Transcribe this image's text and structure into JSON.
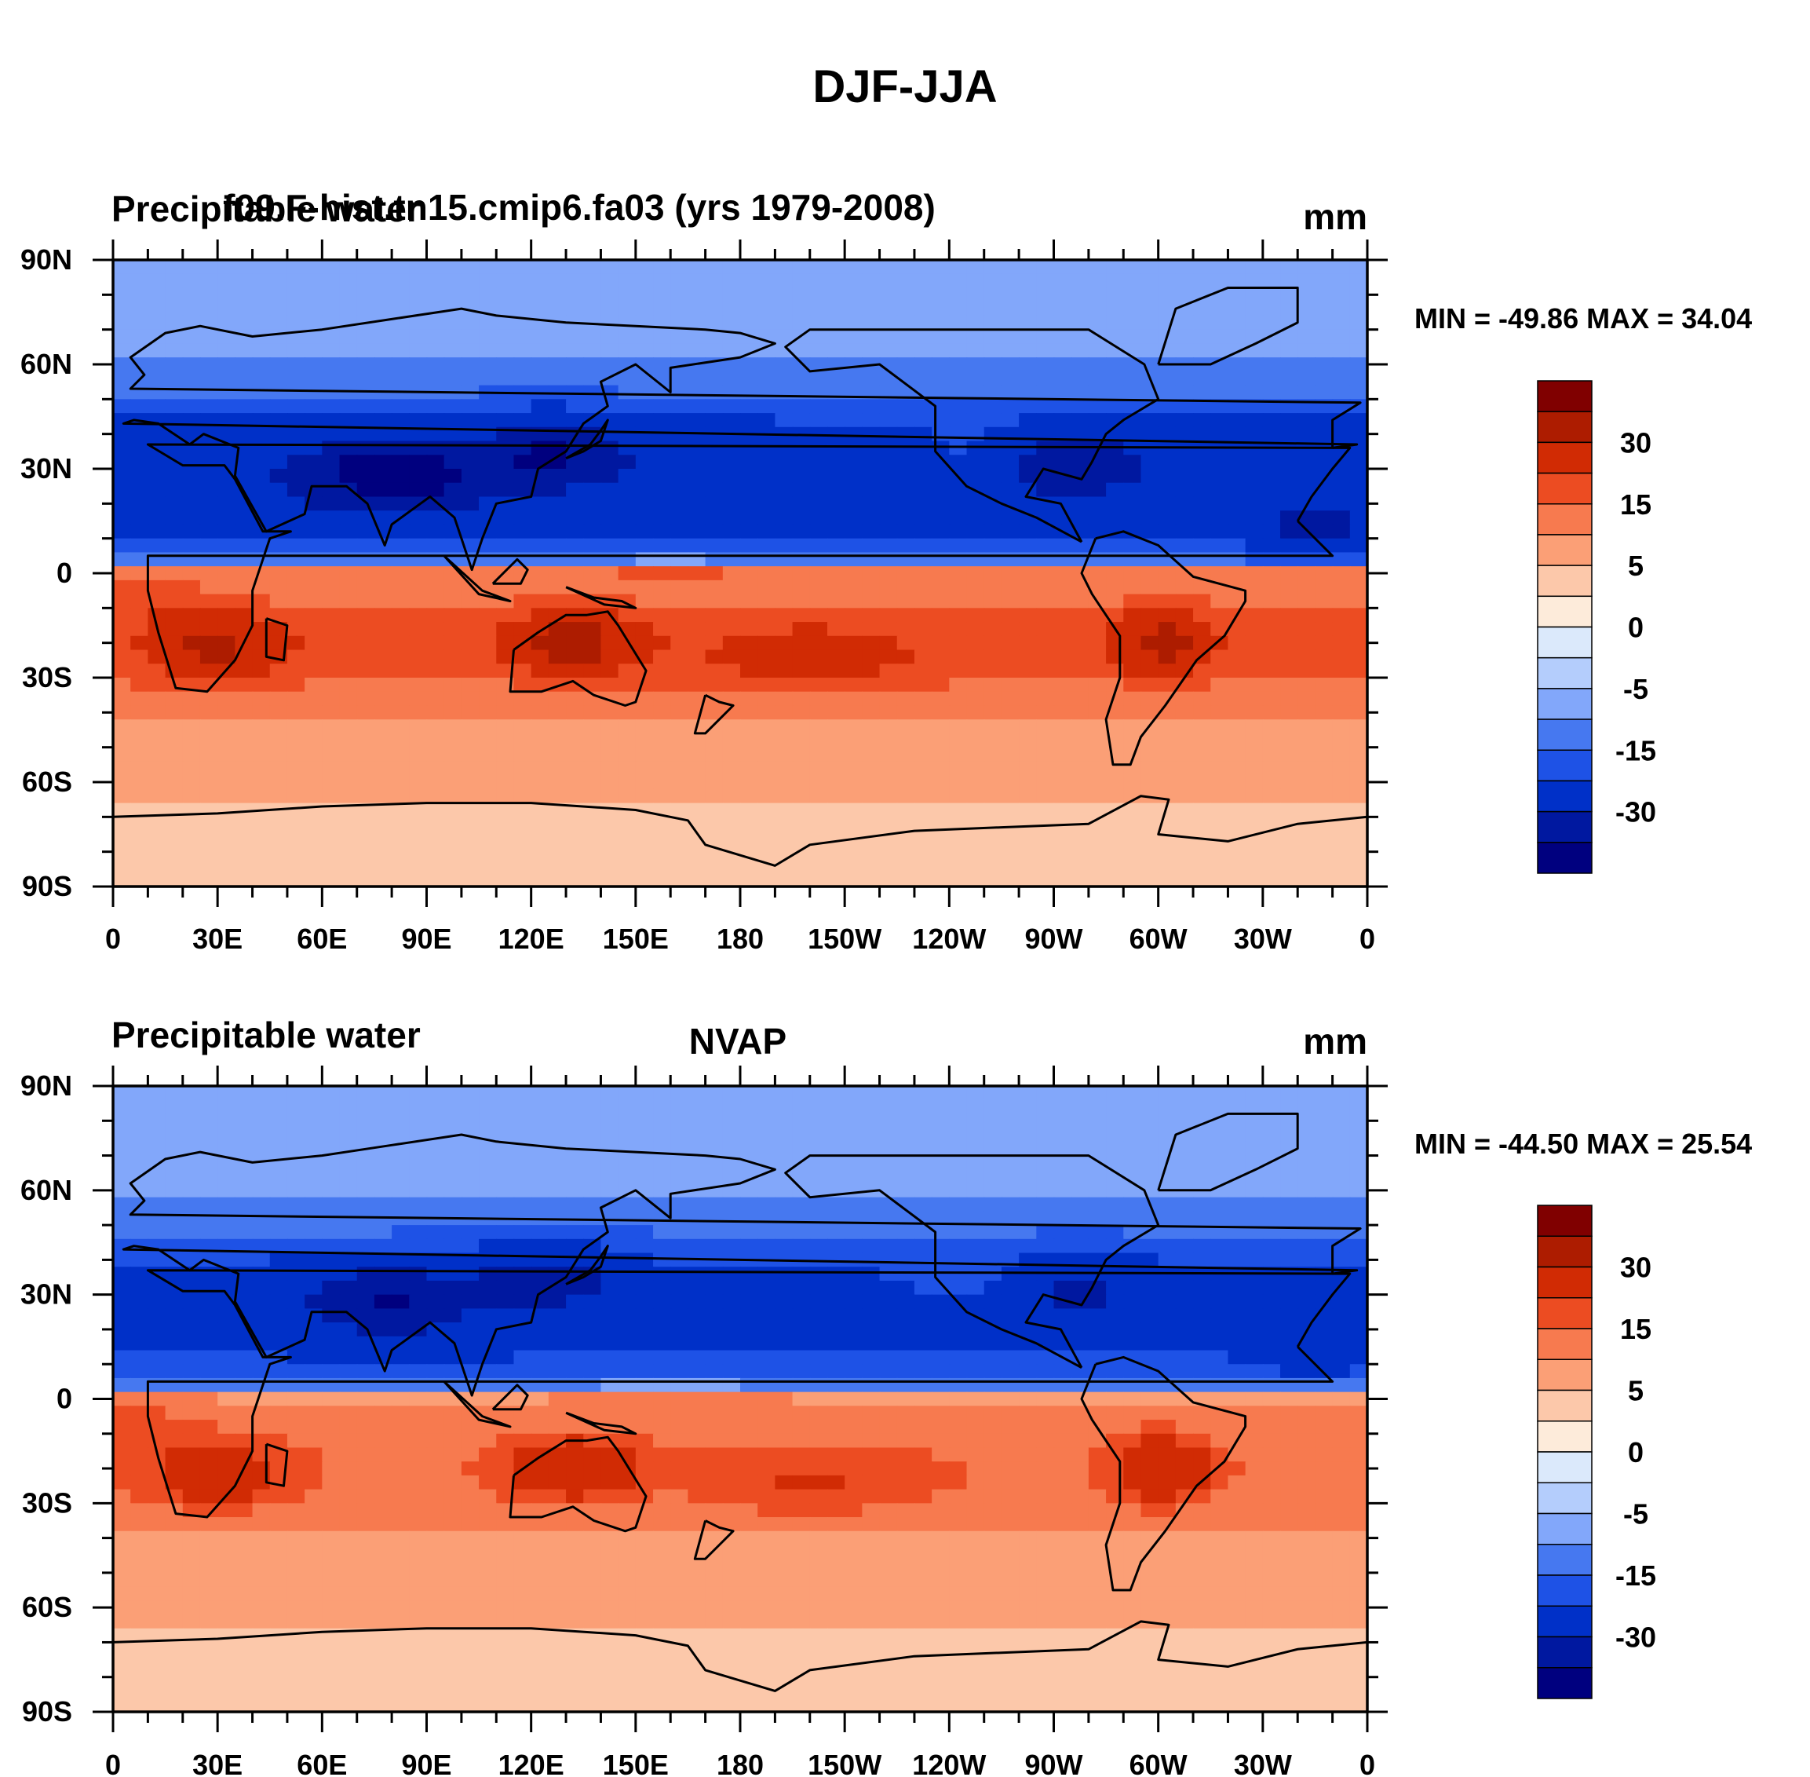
{
  "figure": {
    "title": "DJF-JJA"
  },
  "colorbar_colors": [
    "#00007f",
    "#0018a0",
    "#0030c8",
    "#1e52e6",
    "#4678f0",
    "#82a7fa",
    "#b4cdfc",
    "#dbe9fb",
    "#fdebda",
    "#fcc8aa",
    "#fb9f76",
    "#f77a4f",
    "#ec4c22",
    "#d12b04",
    "#ad1c00",
    "#800000"
  ],
  "chart_data": [
    {
      "type": "heatmap",
      "panel": "top",
      "left_title": "Precipitable water",
      "center_title": "f09.F-hist.tn15.cmip6.fa03 (yrs 1979-2008)",
      "units": "mm",
      "stats": "MIN = -49.86 MAX =  34.04",
      "xlabel": "",
      "ylabel": "",
      "x_tick_labels": [
        "0",
        "30E",
        "60E",
        "90E",
        "120E",
        "150E",
        "180",
        "150W",
        "120W",
        "90W",
        "60W",
        "30W",
        "0"
      ],
      "y_tick_labels": [
        "90N",
        "60N",
        "30N",
        "0",
        "30S",
        "60S",
        "90S"
      ],
      "xlim": [
        0,
        360
      ],
      "ylim": [
        -90,
        90
      ],
      "colorbar_labels": [
        "30",
        "15",
        "5",
        "0",
        "-5",
        "-15",
        "-30"
      ],
      "min": -49.86,
      "max": 34.04
    },
    {
      "type": "heatmap",
      "panel": "bottom",
      "left_title": "Precipitable water",
      "center_title": "NVAP",
      "units": "mm",
      "stats": "MIN = -44.50 MAX =  25.54",
      "xlabel": "",
      "ylabel": "",
      "x_tick_labels": [
        "0",
        "30E",
        "60E",
        "90E",
        "120E",
        "150E",
        "180",
        "150W",
        "120W",
        "90W",
        "60W",
        "30W",
        "0"
      ],
      "y_tick_labels": [
        "90N",
        "60N",
        "30N",
        "0",
        "30S",
        "60S",
        "90S"
      ],
      "xlim": [
        0,
        360
      ],
      "ylim": [
        -90,
        90
      ],
      "colorbar_labels": [
        "30",
        "15",
        "5",
        "0",
        "-5",
        "-15",
        "-30"
      ],
      "min": -44.5,
      "max": 25.54
    }
  ]
}
